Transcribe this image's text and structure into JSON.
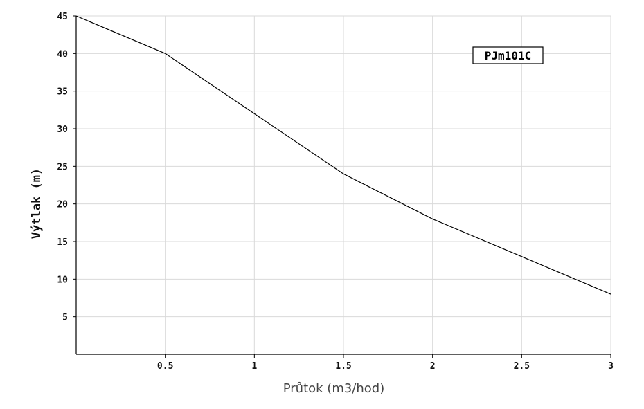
{
  "chart_data": {
    "type": "line",
    "title": "",
    "xlabel": "Průtok (m3/hod)",
    "ylabel": "Výtlak (m)",
    "xlim": [
      0,
      3
    ],
    "ylim": [
      0,
      45
    ],
    "x_ticks": [
      0.5,
      1,
      1.5,
      2,
      2.5,
      3
    ],
    "x_tick_labels": [
      "0.5",
      "1",
      "1.5",
      "2",
      "2.5",
      "3"
    ],
    "y_ticks": [
      5,
      10,
      15,
      20,
      25,
      30,
      35,
      40,
      45
    ],
    "y_tick_labels": [
      "5",
      "10",
      "15",
      "20",
      "25",
      "30",
      "35",
      "40",
      "45"
    ],
    "grid": true,
    "legend": "top-right",
    "series": [
      {
        "name": "PJm101C",
        "color": "#000000",
        "x": [
          0,
          0.5,
          1,
          1.5,
          2,
          2.5,
          3
        ],
        "y": [
          45,
          40,
          32,
          24,
          18,
          13,
          8
        ]
      }
    ]
  }
}
